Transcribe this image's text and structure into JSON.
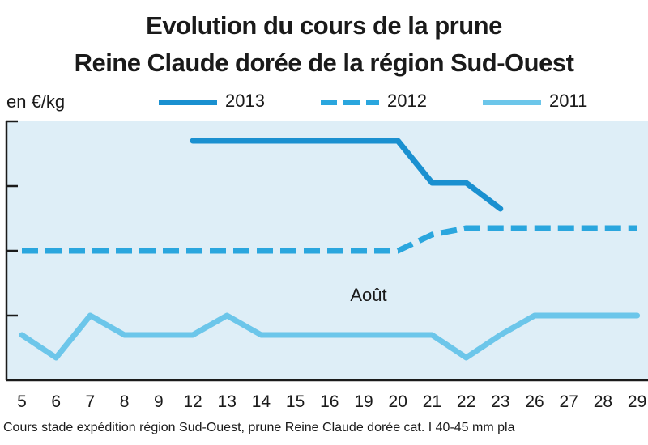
{
  "title_line1": "Evolution du cours de la prune",
  "title_line2": "Reine Claude dorée de la région Sud-Ouest",
  "unit_label": "en €/kg",
  "footnote": "Cours stade expédition région Sud-Ouest, prune Reine Claude dorée cat. I 40-45 mm pla",
  "colors": {
    "plot_background": "#deeef7",
    "series_2013": "#1a90d0",
    "series_2012": "#2aa6de",
    "series_2011": "#6cc6ea",
    "axis": "#1a1a1a"
  },
  "chart_data": {
    "type": "line",
    "title": "Evolution du cours de la prune Reine Claude dorée de la région Sud-Ouest",
    "ylabel": "en €/kg",
    "xlabel": "",
    "categories": [
      "5",
      "6",
      "7",
      "8",
      "9",
      "12",
      "13",
      "14",
      "15",
      "16",
      "19",
      "20",
      "21",
      "22",
      "23",
      "26",
      "27",
      "28",
      "29"
    ],
    "annotation": "Août",
    "grid": false,
    "legend_position": "top",
    "y_tick_labels_shown": false,
    "ylim": [
      0,
      4
    ],
    "series": [
      {
        "name": "2013",
        "style": "solid",
        "values": [
          null,
          null,
          null,
          null,
          null,
          3.7,
          3.7,
          3.7,
          3.7,
          3.7,
          3.7,
          3.7,
          3.05,
          3.05,
          2.65,
          null,
          null,
          null,
          null
        ]
      },
      {
        "name": "2012",
        "style": "dashed",
        "values": [
          2.0,
          2.0,
          2.0,
          2.0,
          2.0,
          2.0,
          2.0,
          2.0,
          2.0,
          2.0,
          2.0,
          2.0,
          2.25,
          2.35,
          2.35,
          2.35,
          2.35,
          2.35,
          2.35
        ]
      },
      {
        "name": "2011",
        "style": "solid",
        "values": [
          0.7,
          0.35,
          1.0,
          0.7,
          0.7,
          0.7,
          1.0,
          0.7,
          0.7,
          0.7,
          0.7,
          0.7,
          0.7,
          0.35,
          0.7,
          1.0,
          1.0,
          1.0,
          1.0
        ]
      }
    ]
  }
}
